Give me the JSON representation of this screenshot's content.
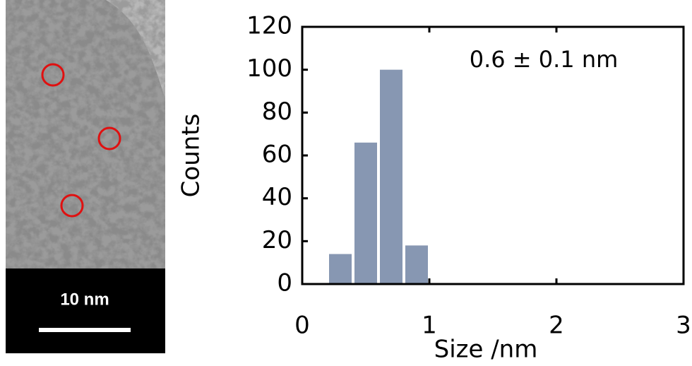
{
  "scale_bar": {
    "label": "10 nm"
  },
  "chart_data": {
    "type": "histogram",
    "bins": [
      0.2,
      0.4,
      0.6,
      0.8,
      1.0
    ],
    "values": [
      14,
      66,
      100,
      18
    ],
    "color": "#8797b2",
    "xlabel": "Size /nm",
    "ylabel": "Counts",
    "annotation": "0.6 ± 0.1 nm",
    "xlim": [
      0,
      3
    ],
    "xticks": [
      0,
      1,
      2,
      3
    ],
    "ylim": [
      0,
      120
    ],
    "yticks": [
      0,
      20,
      40,
      60,
      80,
      100,
      120
    ]
  }
}
